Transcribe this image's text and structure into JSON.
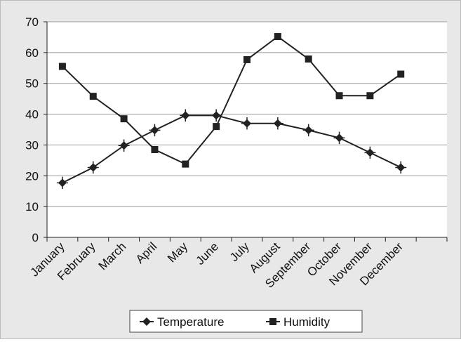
{
  "chart_data": {
    "type": "line",
    "categories": [
      "January",
      "February",
      "March",
      "April",
      "May",
      "June",
      "July",
      "August",
      "September",
      "October",
      "November",
      "December",
      null
    ],
    "series": [
      {
        "name": "Temperature",
        "color": "#222222",
        "marker": "diamond",
        "values": [
          17.7,
          22.7,
          29.8,
          34.8,
          39.6,
          39.6,
          37,
          37,
          34.8,
          32.3,
          27.5,
          22.7,
          null
        ],
        "errors": [
          2,
          2,
          2,
          2,
          2,
          2,
          2,
          2,
          2,
          2,
          2,
          2,
          null
        ]
      },
      {
        "name": "Humidity",
        "color": "#222222",
        "marker": "square",
        "values": [
          55.5,
          45.8,
          38.5,
          28.5,
          23.8,
          36,
          57.7,
          65.2,
          57.9,
          46,
          46,
          53,
          null
        ]
      }
    ],
    "ylim": [
      0,
      70
    ],
    "yticks": [
      0,
      10,
      20,
      30,
      40,
      50,
      60,
      70
    ],
    "grid": true,
    "legend": "bottom"
  }
}
